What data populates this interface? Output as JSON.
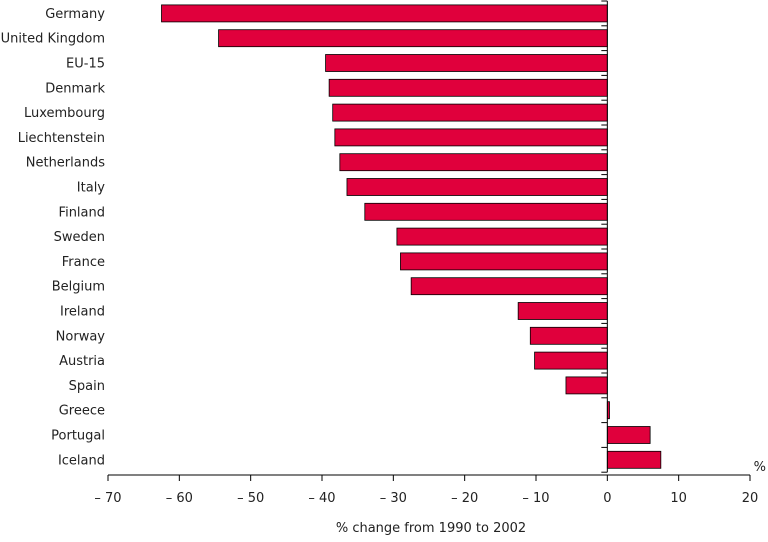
{
  "chart_data": {
    "type": "bar",
    "orientation": "horizontal",
    "categories": [
      "Germany",
      "United Kingdom",
      "EU-15",
      "Denmark",
      "Luxembourg",
      "Liechtenstein",
      "Netherlands",
      "Italy",
      "Finland",
      "Sweden",
      "France",
      "Belgium",
      "Ireland",
      "Norway",
      "Austria",
      "Spain",
      "Greece",
      "Portugal",
      "Iceland"
    ],
    "values": [
      -62.5,
      -54.5,
      -39.5,
      -39.0,
      -38.5,
      -38.2,
      -37.5,
      -36.5,
      -34.0,
      -29.5,
      -29.0,
      -27.5,
      -12.5,
      -10.8,
      -10.2,
      -5.8,
      0.3,
      6.0,
      7.5
    ],
    "xlabel": "% change from 1990 to 2002",
    "unit": "%",
    "xlim": [
      -70,
      20
    ],
    "xticks": [
      -70,
      -60,
      -50,
      -40,
      -30,
      -20,
      -10,
      0,
      10,
      20
    ],
    "xtick_labels": [
      "– 70",
      "– 60",
      "– 50",
      "– 40",
      "– 30",
      "– 20",
      "– 10",
      "0",
      "10",
      "20"
    ],
    "bar_color": "#e0003c",
    "grid": false,
    "legend": "none"
  }
}
